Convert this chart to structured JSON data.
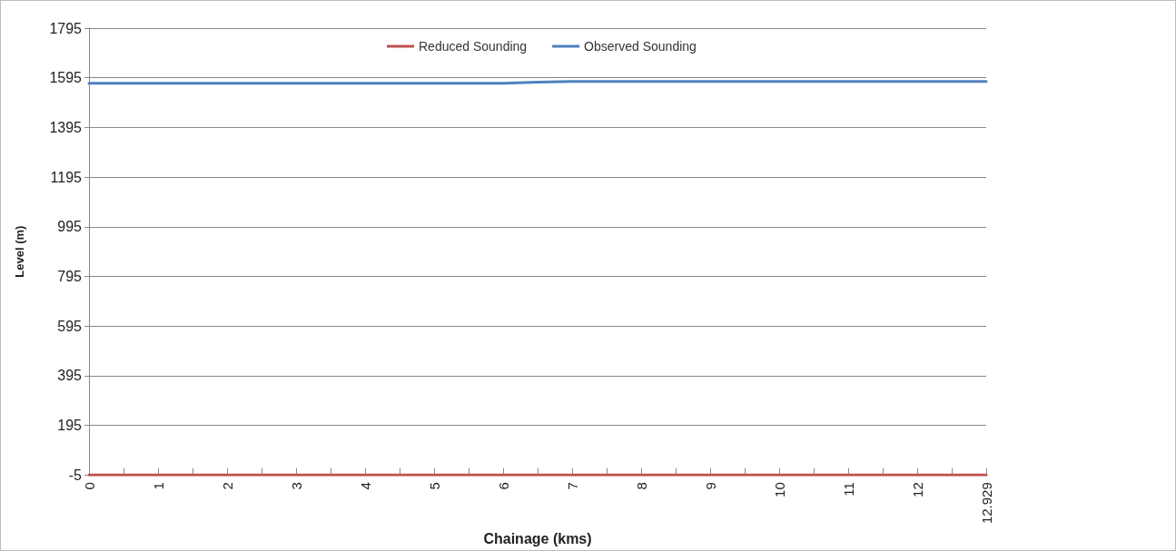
{
  "chart_data": {
    "type": "line",
    "xlabel": "Chainage (kms)",
    "ylabel": "Level (m)",
    "categories": [
      "0",
      null,
      "1",
      null,
      "2",
      null,
      "3",
      null,
      "4",
      null,
      "5",
      null,
      "6",
      null,
      "7",
      null,
      "8",
      null,
      "9",
      null,
      "10",
      null,
      "11",
      null,
      "12",
      null,
      "12.929"
    ],
    "series": [
      {
        "name": "Reduced Sounding",
        "color": "#c0504d",
        "values": [
          -5,
          -5,
          -5,
          -5,
          -5,
          -5,
          -5,
          -5,
          -5,
          -5,
          -5,
          -5,
          -5,
          -5,
          -5,
          -5,
          -5,
          -5,
          -5,
          -5,
          -5,
          -5,
          -5,
          -5,
          -5,
          -5,
          -5
        ]
      },
      {
        "name": "Observed Sounding",
        "color": "#4f81bd",
        "values": [
          1573,
          1573,
          1573,
          1573,
          1573,
          1573,
          1573,
          1573,
          1573,
          1573,
          1573,
          1573,
          1573,
          1577,
          1580,
          1580,
          1580,
          1580,
          1580,
          1580,
          1580,
          1580,
          1580,
          1580,
          1580,
          1580,
          1580
        ]
      }
    ],
    "ylim": [
      -5,
      1795
    ],
    "yticks": [
      -5,
      195,
      395,
      595,
      795,
      995,
      1195,
      1395,
      1595,
      1795
    ],
    "grid": "y",
    "legend": "top",
    "marker": "none",
    "line_style": "solid"
  }
}
